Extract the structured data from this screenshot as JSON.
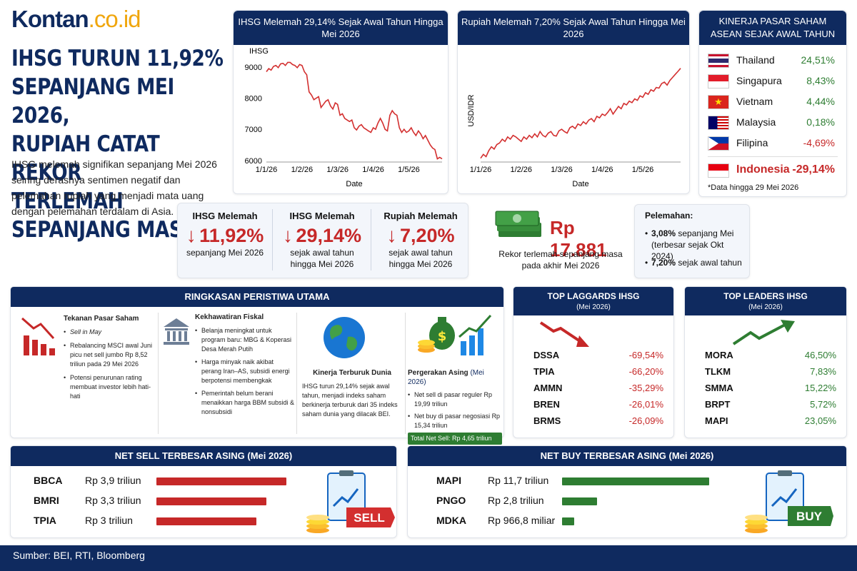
{
  "logo": {
    "brand": "Kontan",
    "tail": ".co.id"
  },
  "headline": [
    "IHSG TURUN 11,92%",
    "SEPANJANG MEI 2026,",
    "RUPIAH CATAT REKOR",
    "TERLEMAH SEPANJANG MASA"
  ],
  "intro": "IHSG melemah signifikan sepanjang Mei 2026 seiring derasnya sentimen negatif dan pelemahan rupiah yang menjadi mata uang dengan pelemahan terdalam di Asia.",
  "colors": {
    "navy": "#0f2a5f",
    "red": "#c62828",
    "green": "#2e7d32",
    "line": "#d32f2f"
  },
  "chart_data": [
    {
      "type": "line",
      "title": "IHSG Melemah 29,14% Sejak Awal Tahun Hingga Mei 2026",
      "xlabel": "Date",
      "ylabel": "IHSG",
      "ylim": [
        5950,
        9250
      ],
      "yticks": [
        6000,
        7000,
        8000,
        9000
      ],
      "xticks": [
        "1/1/26",
        "1/2/26",
        "1/3/26",
        "1/4/26",
        "1/5/26"
      ],
      "x": [
        0,
        2,
        4,
        6,
        8,
        10,
        12,
        14,
        16,
        18,
        20,
        22,
        24,
        26,
        28,
        30,
        32,
        34,
        36,
        38,
        40,
        42,
        44,
        46,
        48,
        50,
        52,
        54,
        56,
        58,
        60,
        62,
        64,
        66,
        68,
        70,
        72,
        74,
        76,
        78,
        80,
        82,
        84,
        86,
        88,
        90,
        92,
        94,
        96,
        98,
        100,
        102,
        104,
        106,
        108,
        110,
        112,
        114,
        116,
        118,
        120,
        122,
        124,
        126,
        128,
        130,
        132,
        134,
        136,
        138,
        140,
        142,
        144,
        146,
        148
      ],
      "values": [
        8850,
        8950,
        8900,
        9020,
        9050,
        8980,
        9100,
        9120,
        9050,
        9150,
        9150,
        9080,
        9050,
        8980,
        9080,
        9050,
        8850,
        8750,
        8200,
        8100,
        7950,
        8000,
        8050,
        7700,
        7800,
        7900,
        7950,
        7750,
        7650,
        7850,
        7800,
        7450,
        7500,
        7350,
        7300,
        7250,
        7300,
        7050,
        6980,
        7100,
        7150,
        7050,
        7000,
        6950,
        6900,
        7050,
        7000,
        7200,
        7350,
        7200,
        7000,
        6950,
        7450,
        7600,
        7500,
        7450,
        7050,
        6900,
        7000,
        6900,
        6950,
        7050,
        6900,
        6800,
        6950,
        6850,
        6700,
        6800,
        6650,
        6500,
        6400,
        6350,
        6050,
        6100,
        6050
      ]
    },
    {
      "type": "line",
      "title": "Rupiah Melemah 7,20% Sejak Awal Tahun Hingga Mei 2026",
      "xlabel": "Date",
      "ylabel": "USD/IDR",
      "ylim": [
        16650,
        18000
      ],
      "xticks": [
        "1/1/26",
        "1/2/26",
        "1/3/26",
        "1/4/26",
        "1/5/26"
      ],
      "x": [
        0,
        2,
        4,
        6,
        8,
        10,
        12,
        14,
        16,
        18,
        20,
        22,
        24,
        26,
        28,
        30,
        32,
        34,
        36,
        38,
        40,
        42,
        44,
        46,
        48,
        50,
        52,
        54,
        56,
        58,
        60,
        62,
        64,
        66,
        68,
        70,
        72,
        74,
        76,
        78,
        80,
        82,
        84,
        86,
        88,
        90,
        92,
        94,
        96,
        98,
        100,
        102,
        104,
        106,
        108,
        110,
        112,
        114,
        116,
        118,
        120,
        122,
        124,
        126,
        128,
        130,
        132,
        134,
        136,
        138,
        140,
        142,
        144,
        146,
        148
      ],
      "values": [
        16700,
        16750,
        16720,
        16800,
        16850,
        16820,
        16880,
        16900,
        16950,
        16920,
        16980,
        16950,
        17000,
        16980,
        16950,
        16920,
        16980,
        16950,
        17000,
        16970,
        17020,
        16980,
        17050,
        17000,
        16980,
        17030,
        17050,
        17000,
        16990,
        17060,
        17080,
        17050,
        17030,
        17100,
        17120,
        17090,
        17150,
        17130,
        17180,
        17150,
        17200,
        17220,
        17180,
        17250,
        17230,
        17280,
        17260,
        17300,
        17350,
        17280,
        17330,
        17380,
        17350,
        17420,
        17400,
        17450,
        17430,
        17480,
        17460,
        17520,
        17500,
        17560,
        17540,
        17600,
        17580,
        17630,
        17620,
        17680,
        17700,
        17660,
        17720,
        17760,
        17800,
        17840,
        17881
      ]
    }
  ],
  "asean": {
    "title": [
      "KINERJA PASAR SAHAM",
      "ASEAN SEJAK AWAL TAHUN"
    ],
    "rows": [
      {
        "country": "Thailand",
        "value": "24,51%",
        "flag": "flag-thailand"
      },
      {
        "country": "Singapura",
        "value": "8,43%",
        "flag": "flag-singapore"
      },
      {
        "country": "Vietnam",
        "value": "4,44%",
        "flag": "flag-vietnam"
      },
      {
        "country": "Malaysia",
        "value": "0,18%",
        "flag": "flag-malaysia"
      },
      {
        "country": "Filipina",
        "value": "-4,69%",
        "flag": "flag-philippines"
      },
      {
        "country": "Indonesia",
        "value": "-29,14%",
        "flag": "flag-indonesia"
      }
    ],
    "note": "*Data hingga 29 Mei 2026"
  },
  "stats": [
    {
      "title": "IHSG Melemah",
      "value": "11,92%",
      "sub1": "sepanjang Mei 2026",
      "sub2": ""
    },
    {
      "title": "IHSG Melemah",
      "value": "29,14%",
      "sub1": "sejak awal tahun",
      "sub2": "hingga Mei 2026"
    },
    {
      "title": "Rupiah Melemah",
      "value": "7,20%",
      "sub1": "sejak awal tahun",
      "sub2": "hingga Mei 2026"
    }
  ],
  "record": {
    "value": "Rp 17.881",
    "caption1": "Rekor terlemah sepanjang masa",
    "caption2": "pada akhir Mei 2026"
  },
  "weakening": {
    "title": "Pelemahan:",
    "b1_val": "3,08%",
    "b1_text": "sepanjang Mei",
    "b1_sub": "(terbesar sejak Okt 2024)",
    "b2_val": "7,20%",
    "b2_text": "sejak awal tahun"
  },
  "events": {
    "title": "RINGKASAN PERISTIWA UTAMA",
    "pressure": {
      "title": "Tekanan Pasar Saham",
      "b1": "Sell in May",
      "b2": "Rebalancing MSCI awal Juni picu net sell jumbo Rp 8,52 triliun pada 29 Mei 2026",
      "b3": "Potensi penurunan rating membuat investor lebih hati-hati"
    },
    "fiscal": {
      "title": "Kekhawatiran Fiskal",
      "b1": "Belanja meningkat untuk program baru: MBG & Koperasi Desa Merah Putih",
      "b2": "Harga minyak naik akibat perang Iran–AS, subsidi energi berpotensi membengkak",
      "b3": "Pemerintah belum berani menaikkan harga BBM subsidi & nonsubsidi"
    },
    "world": {
      "title": "Kinerja Terburuk Dunia",
      "text": "IHSG turun 29,14% sejak awal tahun, menjadi indeks saham berkinerja terburuk dari 35 indeks saham dunia yang dilacak BEI."
    },
    "foreign": {
      "title": "Pergerakan Asing",
      "period": "(Mei 2026)",
      "b1": "Net sell di pasar reguler Rp 19,99 triliun",
      "b2": "Net buy di pasar negosiasi Rp 15,34 triliun",
      "total": "Total Net Sell: Rp 4,65 triliun"
    }
  },
  "laggards": {
    "title": "TOP LAGGARDS IHSG",
    "period": "(Mei 2026)",
    "rows": [
      {
        "code": "DSSA",
        "value": "-69,54%"
      },
      {
        "code": "TPIA",
        "value": "-66,20%"
      },
      {
        "code": "AMMN",
        "value": "-35,29%"
      },
      {
        "code": "BREN",
        "value": "-26,01%"
      },
      {
        "code": "BRMS",
        "value": "-26,09%"
      }
    ]
  },
  "leaders": {
    "title": "TOP LEADERS IHSG",
    "period": "(Mei 2026)",
    "rows": [
      {
        "code": "MORA",
        "value": "46,50%"
      },
      {
        "code": "TLKM",
        "value": "7,83%"
      },
      {
        "code": "SMMA",
        "value": "15,22%"
      },
      {
        "code": "BRPT",
        "value": "5,72%"
      },
      {
        "code": "MAPI",
        "value": "23,05%"
      }
    ]
  },
  "net_sell": {
    "title": "NET SELL TERBESAR ASING (Mei 2026)",
    "badge": "SELL",
    "rows": [
      {
        "code": "BBCA",
        "amount": "Rp 3,9 triliun",
        "value_triliun": 3.9
      },
      {
        "code": "BMRI",
        "amount": "Rp 3,3 triliun",
        "value_triliun": 3.3
      },
      {
        "code": "TPIA",
        "amount": "Rp 3 triliun",
        "value_triliun": 3.0
      }
    ]
  },
  "net_buy": {
    "title": "NET BUY TERBESAR ASING (Mei 2026)",
    "badge": "BUY",
    "rows": [
      {
        "code": "MAPI",
        "amount": "Rp 11,7 triliun",
        "value_triliun": 11.7
      },
      {
        "code": "PNGO",
        "amount": "Rp 2,8 triliun",
        "value_triliun": 2.8
      },
      {
        "code": "MDKA",
        "amount": "Rp 966,8 miliar",
        "value_triliun": 0.9668
      }
    ]
  },
  "source": "Sumber: BEI, RTI, Bloomberg"
}
